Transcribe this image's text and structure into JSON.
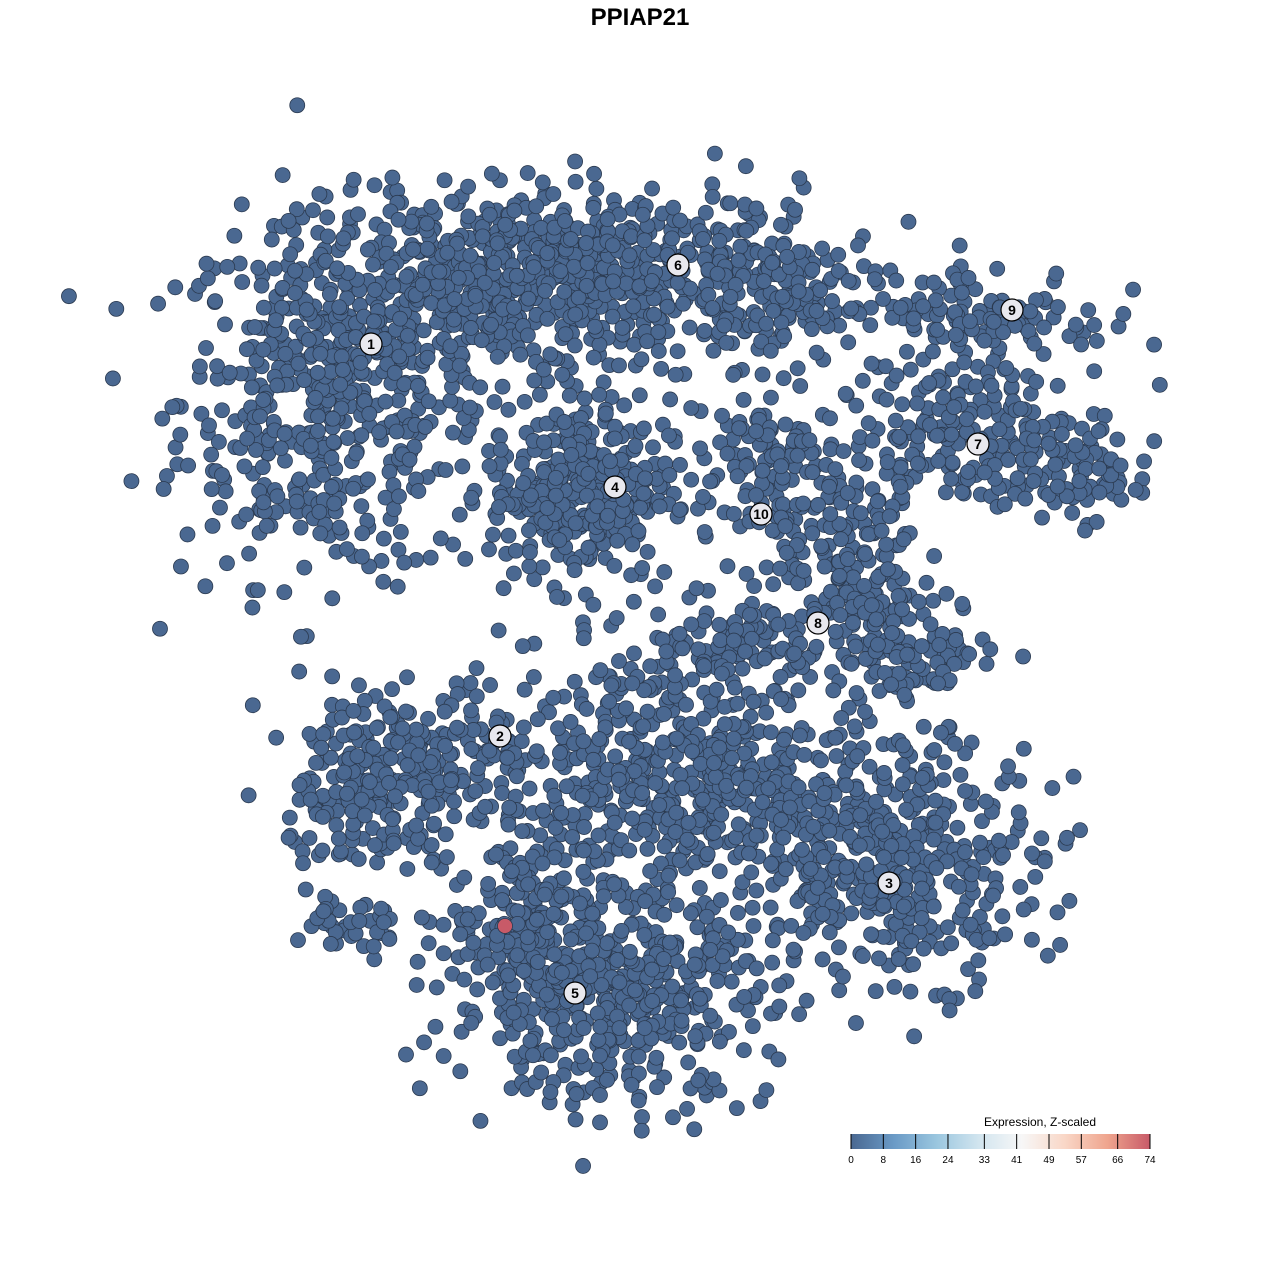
{
  "chart_data": {
    "type": "scatter",
    "title": "PPIAP21",
    "xlabel": "",
    "ylabel": "",
    "grid": false,
    "axes_visible": false,
    "point_colors": {
      "low": "#4a6891",
      "high": "#c85a68",
      "outline": "#2b3a50"
    },
    "clusters": [
      {
        "label": "1",
        "label_pos": [
          -26.9,
          29.6
        ],
        "blobs": [
          {
            "center": [
              -31,
              24
            ],
            "sd": [
              7.5,
              9
            ],
            "n": 500,
            "expression": 0
          },
          {
            "center": [
              -17,
              35
            ],
            "sd": [
              9,
              5
            ],
            "n": 350,
            "expression": 0
          }
        ]
      },
      {
        "label": "6",
        "label_pos": [
          3.8,
          37.5
        ],
        "blobs": [
          {
            "center": [
              -2,
              37
            ],
            "sd": [
              11,
              4
            ],
            "n": 450,
            "expression": 0
          },
          {
            "center": [
              14,
              34
            ],
            "sd": [
              5,
              3.5
            ],
            "n": 120,
            "expression": 0
          }
        ]
      },
      {
        "label": "4",
        "label_pos": [
          -2.5,
          15.3
        ],
        "blobs": [
          {
            "center": [
              -6,
              15
            ],
            "sd": [
              4.5,
              4.5
            ],
            "n": 350,
            "expression": 0
          }
        ]
      },
      {
        "label": "9",
        "label_pos": [
          37.2,
          33
        ],
        "blobs": [
          {
            "center": [
              35,
              32
            ],
            "sd": [
              6,
              3
            ],
            "n": 120,
            "expression": 0
          }
        ]
      },
      {
        "label": "7",
        "label_pos": [
          33.8,
          19.6
        ],
        "blobs": [
          {
            "center": [
              33,
              20
            ],
            "sd": [
              7,
              3.5
            ],
            "n": 200,
            "expression": 0
          },
          {
            "center": [
              44,
              16
            ],
            "sd": [
              3,
              2
            ],
            "n": 50,
            "expression": 0
          }
        ]
      },
      {
        "label": "10",
        "label_pos": [
          12.1,
          12.6
        ],
        "blobs": [
          {
            "center": [
              12,
              17
            ],
            "sd": [
              4,
              4.5
            ],
            "n": 120,
            "expression": 0
          }
        ]
      },
      {
        "label": "8",
        "label_pos": [
          17.8,
          1.7
        ],
        "blobs": [
          {
            "center": [
              21,
              8
            ],
            "sd": [
              3.5,
              5
            ],
            "n": 150,
            "expression": 0
          },
          {
            "center": [
              28,
              -1
            ],
            "sd": [
              4,
              2.5
            ],
            "n": 100,
            "expression": 0
          },
          {
            "center": [
              9,
              0
            ],
            "sd": [
              5,
              2
            ],
            "n": 80,
            "expression": 0
          }
        ]
      },
      {
        "label": "2",
        "label_pos": [
          -14,
          -9.6
        ],
        "blobs": [
          {
            "center": [
              -22,
              -12
            ],
            "sd": [
              6,
              4
            ],
            "n": 200,
            "expression": 0
          },
          {
            "center": [
              -27,
              -17
            ],
            "sd": [
              4,
              3
            ],
            "n": 100,
            "expression": 0
          },
          {
            "center": [
              -29,
              -29
            ],
            "sd": [
              3.5,
              2
            ],
            "n": 40,
            "expression": 0
          }
        ]
      },
      {
        "label": "3",
        "label_pos": [
          24.9,
          -24.3
        ],
        "blobs": [
          {
            "center": [
              4,
              -14
            ],
            "sd": [
              9,
              7
            ],
            "n": 600,
            "expression": 0
          },
          {
            "center": [
              26,
              -22
            ],
            "sd": [
              7,
              6
            ],
            "n": 400,
            "expression": 0
          }
        ]
      },
      {
        "label": "5",
        "label_pos": [
          -6.5,
          -35.3
        ],
        "blobs": [
          {
            "center": [
              -3,
              -36
            ],
            "sd": [
              8,
              5
            ],
            "n": 450,
            "expression": 0
          },
          {
            "center": [
              -11,
              -28
            ],
            "sd": [
              4,
              4
            ],
            "n": 150,
            "expression": 0
          }
        ]
      }
    ],
    "highlighted_points": [
      {
        "x": -13.5,
        "y": -28.6,
        "expression": 74
      }
    ],
    "legend": {
      "title": "Expression, Z-scaled",
      "position": "bottom-right",
      "ticks": [
        "0",
        "8",
        "16",
        "24",
        "33",
        "41",
        "49",
        "57",
        "66",
        "74"
      ],
      "range": [
        0,
        74
      ],
      "colors": [
        "#4a6891",
        "#6a9ac6",
        "#9ac6df",
        "#d2e5ef",
        "#f7f7f7",
        "#f9d7c7",
        "#efa58e",
        "#c85a68"
      ]
    }
  }
}
